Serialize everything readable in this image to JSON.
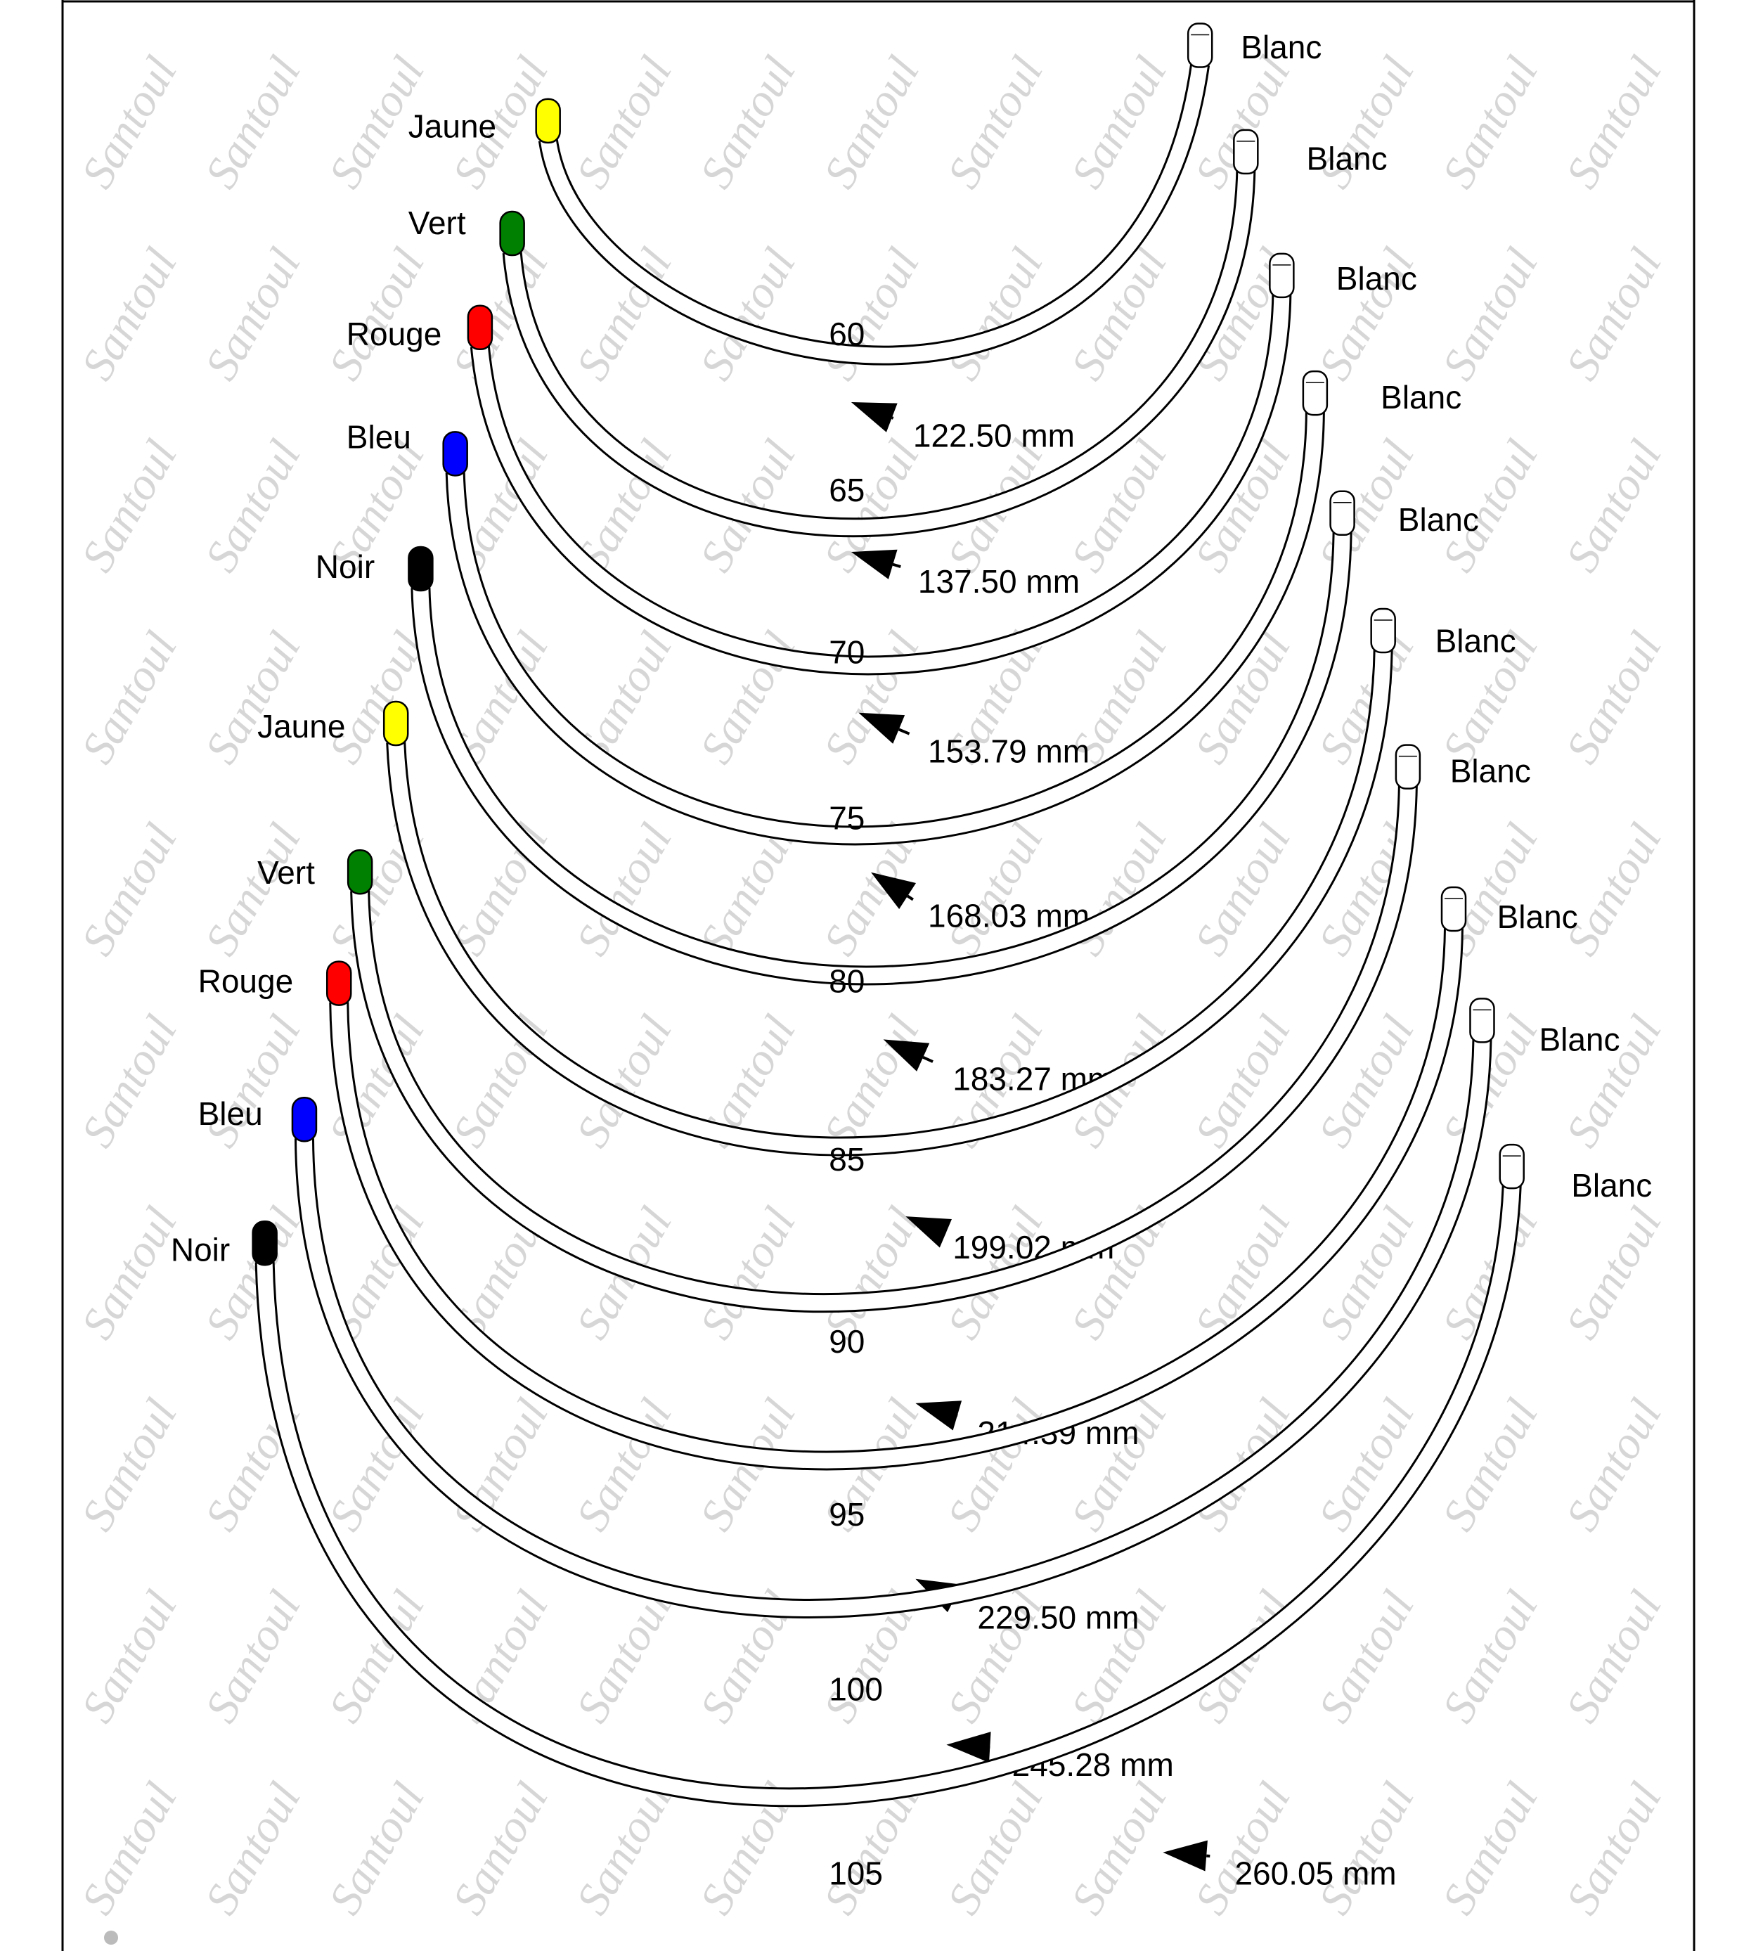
{
  "diagram": {
    "watermark": "Santoul",
    "wires": [
      {
        "size": "60",
        "length": "122.50 mm",
        "left_tip": {
          "label": "Jaune",
          "color": "#ffff00"
        },
        "right_tip": {
          "label": "Blanc",
          "color": "#ffffff"
        }
      },
      {
        "size": "65",
        "length": "137.50 mm",
        "left_tip": {
          "label": "Vert",
          "color": "#008000"
        },
        "right_tip": {
          "label": "Blanc",
          "color": "#ffffff"
        }
      },
      {
        "size": "70",
        "length": "153.79 mm",
        "left_tip": {
          "label": "Rouge",
          "color": "#ff0000"
        },
        "right_tip": {
          "label": "Blanc",
          "color": "#ffffff"
        }
      },
      {
        "size": "75",
        "length": "168.03 mm",
        "left_tip": {
          "label": "Bleu",
          "color": "#0000ff"
        },
        "right_tip": {
          "label": "Blanc",
          "color": "#ffffff"
        }
      },
      {
        "size": "80",
        "length": "183.27 mm",
        "left_tip": {
          "label": "Noir",
          "color": "#000000"
        },
        "right_tip": {
          "label": "Blanc",
          "color": "#ffffff"
        }
      },
      {
        "size": "85",
        "length": "199.02 mm",
        "left_tip": {
          "label": "Jaune",
          "color": "#ffff00"
        },
        "right_tip": {
          "label": "Blanc",
          "color": "#ffffff"
        }
      },
      {
        "size": "90",
        "length": "214.39 mm",
        "left_tip": {
          "label": "Vert",
          "color": "#008000"
        },
        "right_tip": {
          "label": "Blanc",
          "color": "#ffffff"
        }
      },
      {
        "size": "95",
        "length": "229.50 mm",
        "left_tip": {
          "label": "Rouge",
          "color": "#ff0000"
        },
        "right_tip": {
          "label": "Blanc",
          "color": "#ffffff"
        }
      },
      {
        "size": "100",
        "length": "245.28 mm",
        "left_tip": {
          "label": "Bleu",
          "color": "#0000ff"
        },
        "right_tip": {
          "label": "Blanc",
          "color": "#ffffff"
        }
      },
      {
        "size": "105",
        "length": "260.05 mm",
        "left_tip": {
          "label": "Noir",
          "color": "#000000"
        },
        "right_tip": {
          "label": "Blanc",
          "color": "#ffffff"
        }
      }
    ]
  }
}
